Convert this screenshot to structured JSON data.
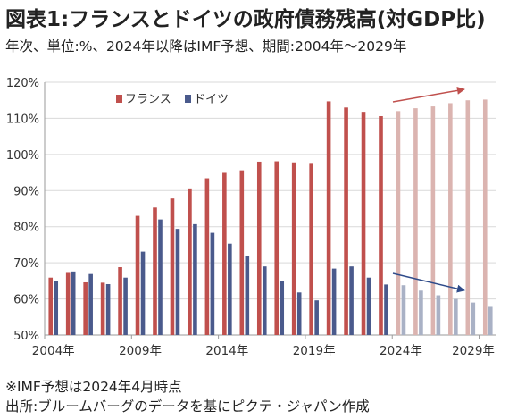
{
  "header": {
    "title": "図表1:フランスとドイツの政府債務残高(対GDP比)",
    "subtitle": "年次、単位:%、2024年以降はIMF予想、期間:2004年〜2029年"
  },
  "notes": {
    "forecast_note": "※IMF予想は2024年4月時点",
    "source": "出所:ブルームバーグのデータを基にピクテ・ジャパン作成"
  },
  "chart_data": {
    "type": "bar",
    "categories": [
      "2004",
      "2005",
      "2006",
      "2007",
      "2008",
      "2009",
      "2010",
      "2011",
      "2012",
      "2013",
      "2014",
      "2015",
      "2016",
      "2017",
      "2018",
      "2019",
      "2020",
      "2021",
      "2022",
      "2023",
      "2024",
      "2025",
      "2026",
      "2027",
      "2028",
      "2029"
    ],
    "x_tick_labels": [
      "2004年",
      "2009年",
      "2014年",
      "2019年",
      "2024年",
      "2029年"
    ],
    "x_tick_indices": [
      0,
      5,
      10,
      15,
      20,
      25
    ],
    "ylim": [
      50,
      120
    ],
    "y_ticks": [
      50,
      60,
      70,
      80,
      90,
      100,
      110,
      120
    ],
    "y_tick_labels": [
      "50%",
      "60%",
      "70%",
      "80%",
      "90%",
      "100%",
      "110%",
      "120%"
    ],
    "forecast_start_index": 20,
    "series": [
      {
        "name": "フランス",
        "color": "#c0504d",
        "forecast_color": "#dbb4b0",
        "values": [
          65.9,
          67.2,
          64.6,
          64.5,
          68.8,
          83.0,
          85.3,
          87.8,
          90.6,
          93.4,
          94.9,
          95.6,
          98.0,
          98.1,
          97.8,
          97.4,
          114.7,
          113.0,
          111.8,
          110.6,
          112.0,
          112.8,
          113.3,
          114.2,
          115.0,
          115.2
        ]
      },
      {
        "name": "ドイツ",
        "color": "#4a5a8c",
        "forecast_color": "#a9b1c5",
        "values": [
          65.0,
          67.6,
          66.9,
          64.1,
          65.9,
          73.1,
          82.0,
          79.4,
          80.7,
          78.3,
          75.3,
          72.0,
          69.0,
          65.0,
          61.8,
          59.6,
          68.4,
          69.0,
          65.9,
          64.0,
          63.8,
          62.3,
          61.0,
          60.0,
          59.0,
          57.8
        ]
      }
    ],
    "legend": {
      "placement": "top-left"
    },
    "grid": "horizontal",
    "annotations": [
      {
        "type": "arrow",
        "series": "フランス",
        "direction": "up",
        "color": "#c0504d"
      },
      {
        "type": "arrow",
        "series": "ドイツ",
        "direction": "down",
        "color": "#2f4b8a"
      }
    ]
  }
}
